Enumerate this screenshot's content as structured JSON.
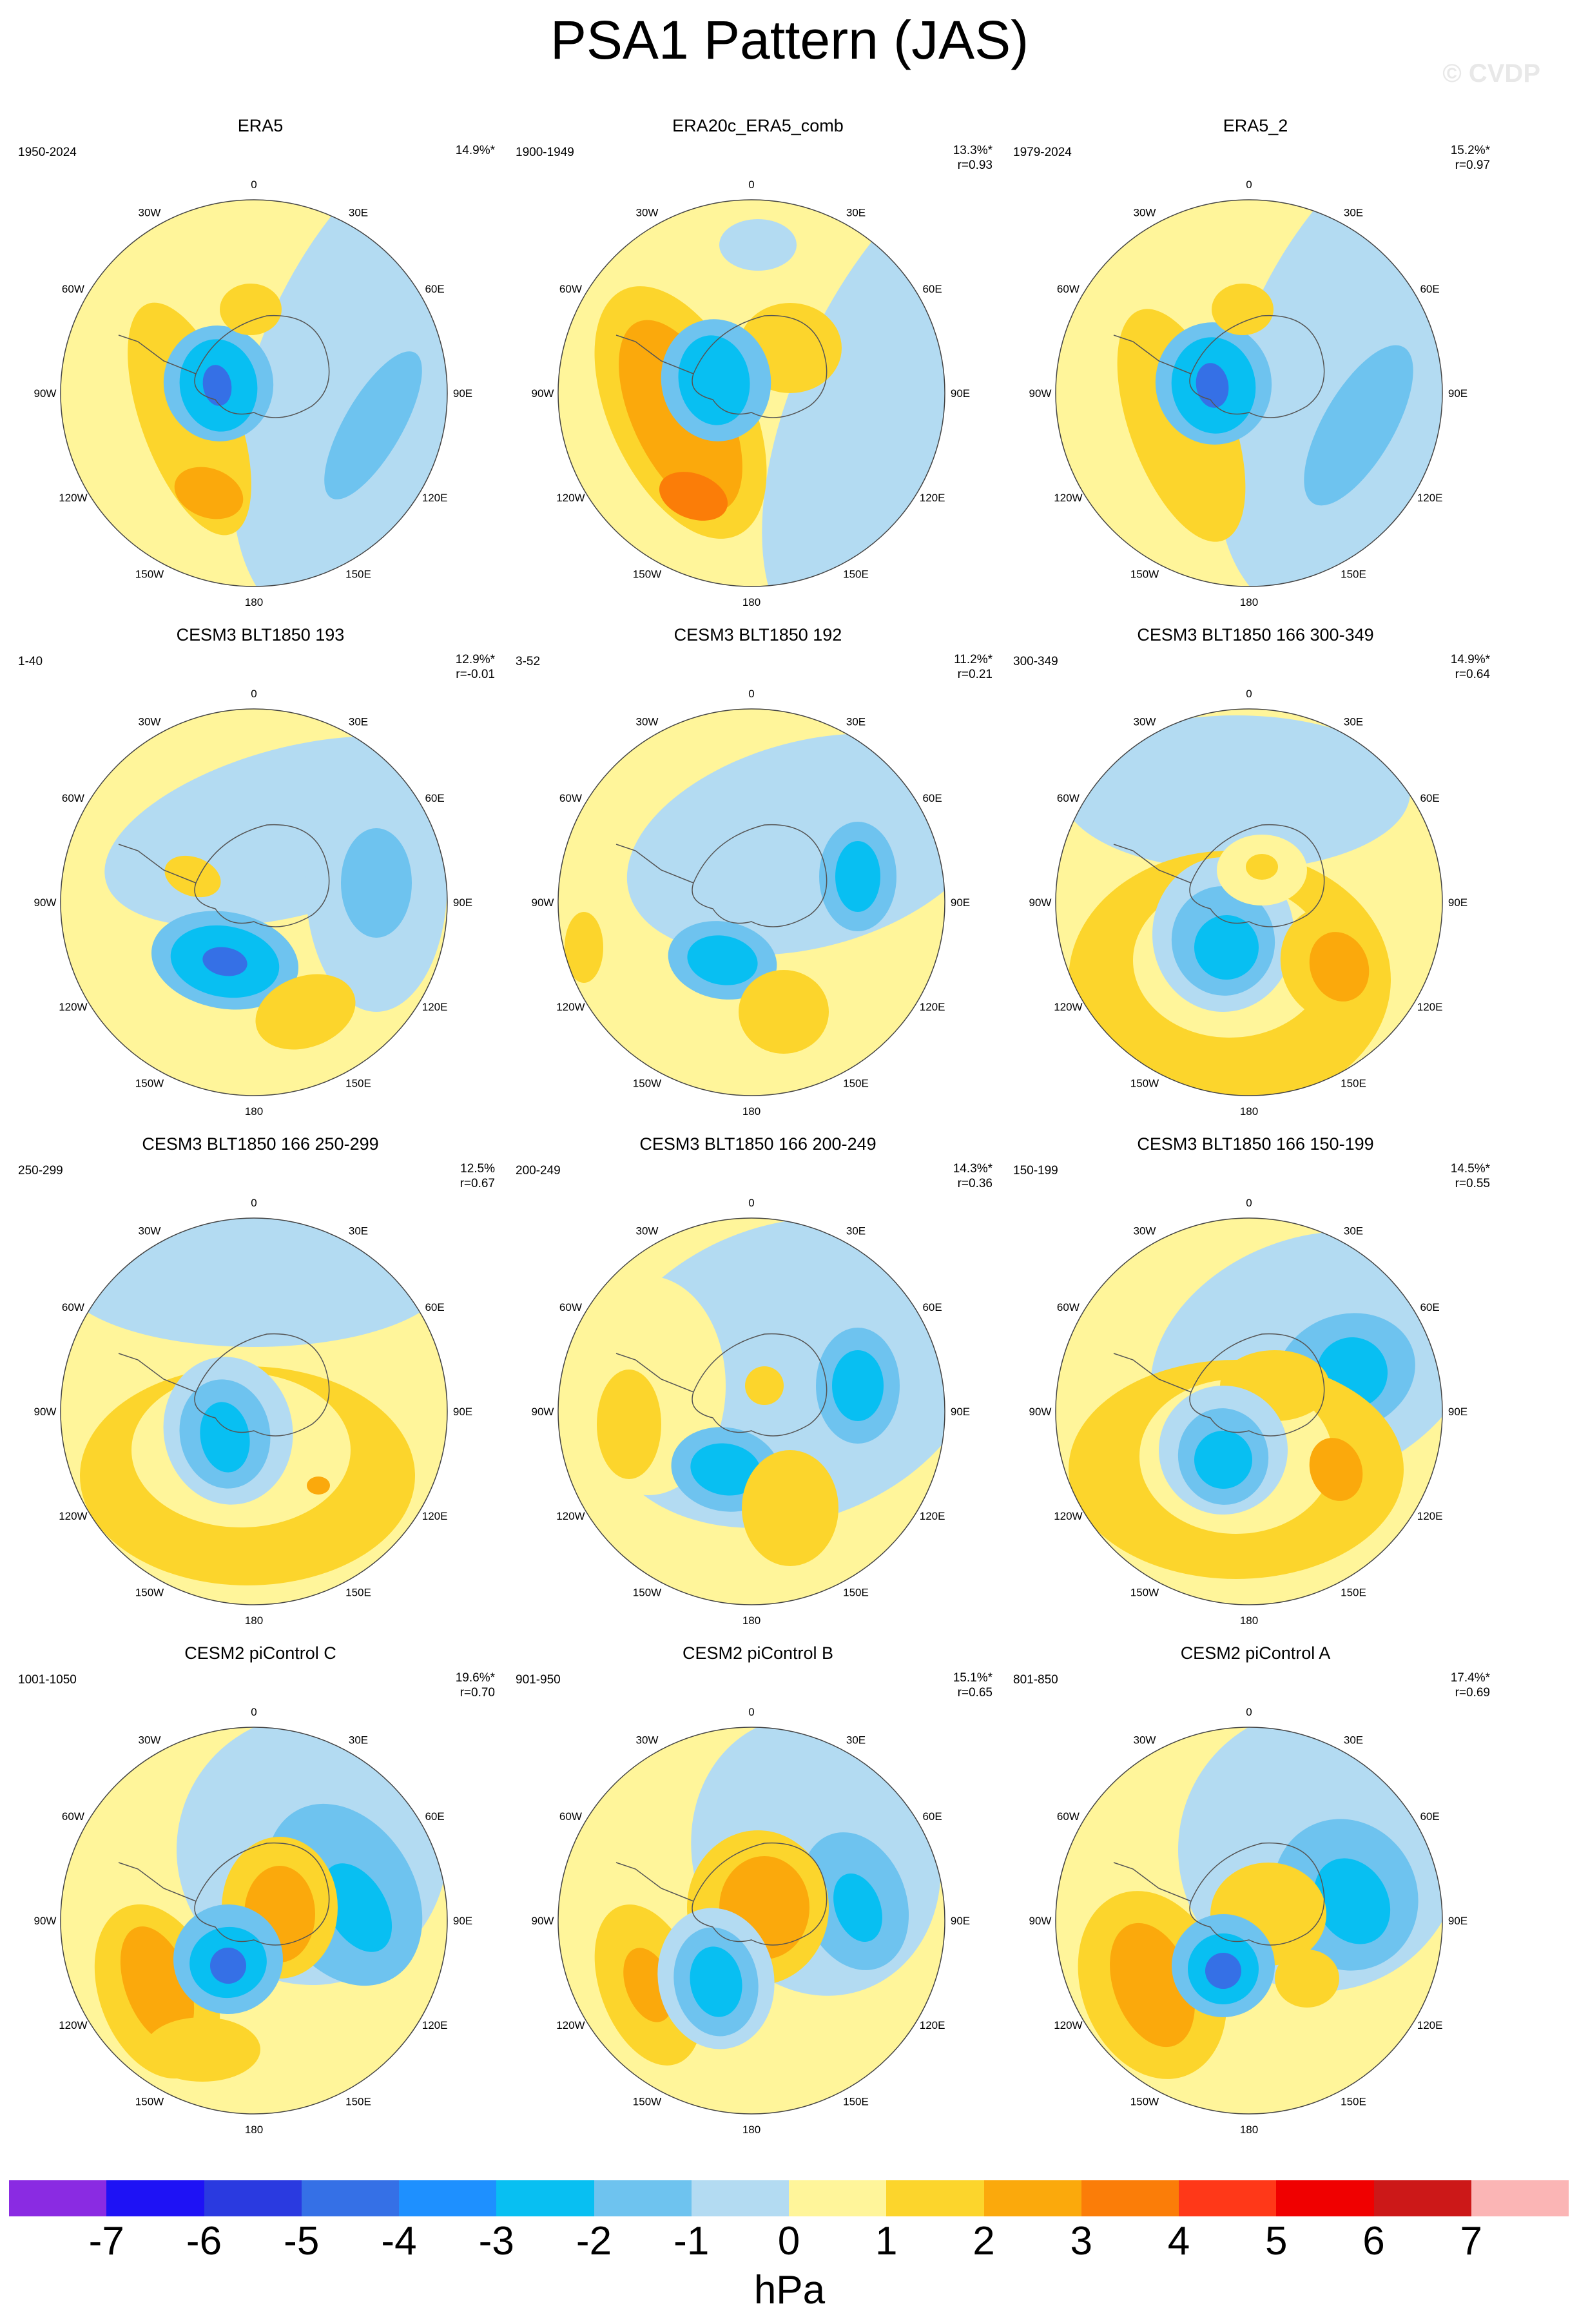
{
  "title": "PSA1 Pattern (JAS)",
  "watermark": "© CVDP",
  "units": "hPa",
  "colors": {
    "background": "#ffffff",
    "positive_1": "#fff59a",
    "negative_1": "#b3dbf2"
  },
  "colorbar": {
    "colors": [
      "#8a2be2",
      "#1e12f5",
      "#2a3ae0",
      "#3570e6",
      "#1e90ff",
      "#08bff2",
      "#6ec3ef",
      "#b3dbf2",
      "#fff59a",
      "#fcd52c",
      "#fba90c",
      "#fb7d08",
      "#ff3818",
      "#f00000",
      "#cc1818",
      "#fbb5b5"
    ],
    "labels": [
      "-7",
      "-6",
      "-5",
      "-4",
      "-3",
      "-2",
      "-1",
      "0",
      "1",
      "2",
      "3",
      "4",
      "5",
      "6",
      "7"
    ]
  },
  "map_labels": {
    "top": "0",
    "bottom": "180",
    "left_upper": "30W",
    "right_upper": "30E",
    "left_60": "60W",
    "right_60": "60E",
    "left_90": "90W",
    "right_90": "90E",
    "left_120": "120W",
    "right_120": "120E",
    "left_150": "150W",
    "right_150": "150E"
  },
  "panels": [
    {
      "title": "ERA5",
      "years": "1950-2024",
      "pct": "14.9%*",
      "r": ""
    },
    {
      "title": "ERA20c_ERA5_comb",
      "years": "1900-1949",
      "pct": "13.3%*",
      "r": "r=0.93"
    },
    {
      "title": "ERA5_2",
      "years": "1979-2024",
      "pct": "15.2%*",
      "r": "r=0.97"
    },
    {
      "title": "CESM3 BLT1850 193",
      "years": "1-40",
      "pct": "12.9%*",
      "r": "r=-0.01"
    },
    {
      "title": "CESM3 BLT1850 192",
      "years": "3-52",
      "pct": "11.2%*",
      "r": "r=0.21"
    },
    {
      "title": "CESM3 BLT1850 166 300-349",
      "years": "300-349",
      "pct": "14.9%*",
      "r": "r=0.64"
    },
    {
      "title": "CESM3 BLT1850 166 250-299",
      "years": "250-299",
      "pct": "12.5%",
      "r": "r=0.67"
    },
    {
      "title": "CESM3 BLT1850 166 200-249",
      "years": "200-249",
      "pct": "14.3%*",
      "r": "r=0.36"
    },
    {
      "title": "CESM3 BLT1850 166 150-199",
      "years": "150-199",
      "pct": "14.5%*",
      "r": "r=0.55"
    },
    {
      "title": "CESM2 piControl C",
      "years": "1001-1050",
      "pct": "19.6%*",
      "r": "r=0.70"
    },
    {
      "title": "CESM2 piControl B",
      "years": "901-950",
      "pct": "15.1%*",
      "r": "r=0.65"
    },
    {
      "title": "CESM2 piControl A",
      "years": "801-850",
      "pct": "17.4%*",
      "r": "r=0.69"
    }
  ]
}
